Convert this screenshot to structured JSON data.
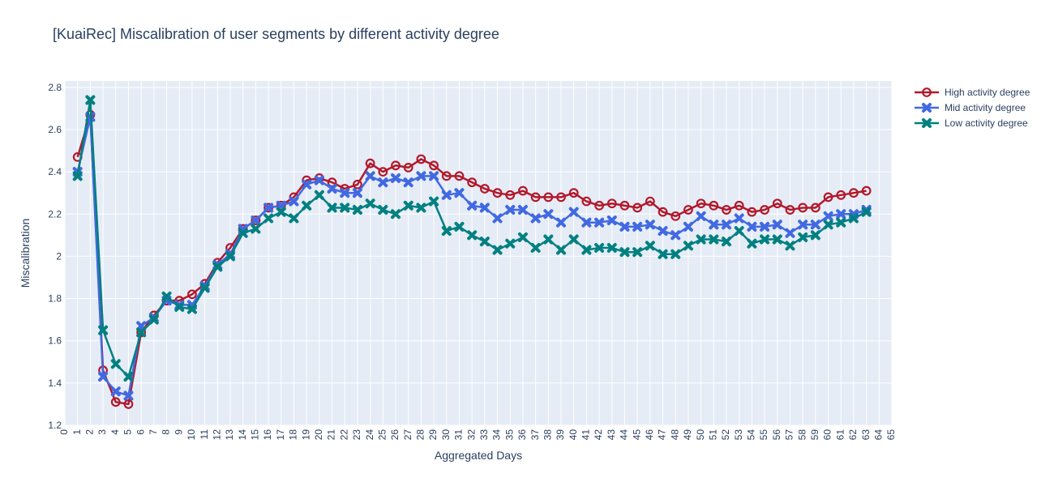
{
  "chart_data": {
    "type": "line",
    "title": "[KuaiRec] Miscalibration of user segments by different activity degree",
    "xlabel": "Aggregated Days",
    "ylabel": "Miscalibration",
    "xlim": [
      0,
      65
    ],
    "ylim": [
      1.2,
      2.83
    ],
    "xticks": [
      0,
      1,
      2,
      3,
      4,
      5,
      6,
      7,
      8,
      9,
      10,
      11,
      12,
      13,
      14,
      15,
      16,
      17,
      18,
      19,
      20,
      21,
      22,
      23,
      24,
      25,
      26,
      27,
      28,
      29,
      30,
      31,
      32,
      33,
      34,
      35,
      36,
      37,
      38,
      39,
      40,
      41,
      42,
      43,
      44,
      45,
      46,
      47,
      48,
      49,
      50,
      51,
      52,
      53,
      54,
      55,
      56,
      57,
      58,
      59,
      60,
      61,
      62,
      63,
      64,
      65
    ],
    "yticks": [
      1.2,
      1.4,
      1.6,
      1.8,
      2,
      2.2,
      2.4,
      2.6,
      2.8
    ],
    "grid": true,
    "legend_position": "top-right",
    "background": "#e5ecf6",
    "x": [
      1,
      2,
      3,
      4,
      5,
      6,
      7,
      8,
      9,
      10,
      11,
      12,
      13,
      14,
      15,
      16,
      17,
      18,
      19,
      20,
      21,
      22,
      23,
      24,
      25,
      26,
      27,
      28,
      29,
      30,
      31,
      32,
      33,
      34,
      35,
      36,
      37,
      38,
      39,
      40,
      41,
      42,
      43,
      44,
      45,
      46,
      47,
      48,
      49,
      50,
      51,
      52,
      53,
      54,
      55,
      56,
      57,
      58,
      59,
      60,
      61,
      62,
      63
    ],
    "series": [
      {
        "name": "High activity degree",
        "color": "#b2182b",
        "marker": "circle-open",
        "values": [
          2.47,
          2.67,
          1.46,
          1.31,
          1.3,
          1.64,
          1.72,
          1.79,
          1.79,
          1.82,
          1.87,
          1.97,
          2.04,
          2.13,
          2.17,
          2.23,
          2.24,
          2.28,
          2.36,
          2.37,
          2.35,
          2.32,
          2.34,
          2.44,
          2.4,
          2.43,
          2.42,
          2.46,
          2.43,
          2.38,
          2.38,
          2.35,
          2.32,
          2.3,
          2.29,
          2.31,
          2.28,
          2.28,
          2.28,
          2.3,
          2.26,
          2.24,
          2.25,
          2.24,
          2.23,
          2.26,
          2.21,
          2.19,
          2.22,
          2.25,
          2.24,
          2.22,
          2.24,
          2.21,
          2.22,
          2.25,
          2.22,
          2.23,
          2.23,
          2.28,
          2.29,
          2.3,
          2.31
        ]
      },
      {
        "name": "Mid activity degree",
        "color": "#4169e1",
        "marker": "x",
        "values": [
          2.4,
          2.66,
          1.43,
          1.36,
          1.34,
          1.67,
          1.71,
          1.79,
          1.77,
          1.77,
          1.86,
          1.96,
          2.01,
          2.13,
          2.17,
          2.23,
          2.24,
          2.26,
          2.34,
          2.36,
          2.32,
          2.3,
          2.3,
          2.38,
          2.35,
          2.37,
          2.35,
          2.38,
          2.38,
          2.29,
          2.3,
          2.24,
          2.23,
          2.18,
          2.22,
          2.22,
          2.18,
          2.2,
          2.16,
          2.21,
          2.16,
          2.16,
          2.17,
          2.14,
          2.14,
          2.15,
          2.12,
          2.1,
          2.14,
          2.19,
          2.15,
          2.15,
          2.18,
          2.14,
          2.14,
          2.15,
          2.11,
          2.15,
          2.15,
          2.19,
          2.2,
          2.2,
          2.22
        ]
      },
      {
        "name": "Low activity degree",
        "color": "#008080",
        "marker": "x",
        "values": [
          2.38,
          2.74,
          1.65,
          1.49,
          1.43,
          1.64,
          1.7,
          1.81,
          1.76,
          1.75,
          1.85,
          1.95,
          2.0,
          2.11,
          2.13,
          2.18,
          2.21,
          2.18,
          2.24,
          2.29,
          2.23,
          2.23,
          2.22,
          2.25,
          2.22,
          2.2,
          2.24,
          2.23,
          2.26,
          2.12,
          2.14,
          2.1,
          2.07,
          2.03,
          2.06,
          2.09,
          2.04,
          2.08,
          2.03,
          2.08,
          2.03,
          2.04,
          2.04,
          2.02,
          2.02,
          2.05,
          2.01,
          2.01,
          2.05,
          2.08,
          2.08,
          2.07,
          2.12,
          2.06,
          2.08,
          2.08,
          2.05,
          2.09,
          2.1,
          2.15,
          2.16,
          2.18,
          2.21
        ]
      }
    ]
  }
}
